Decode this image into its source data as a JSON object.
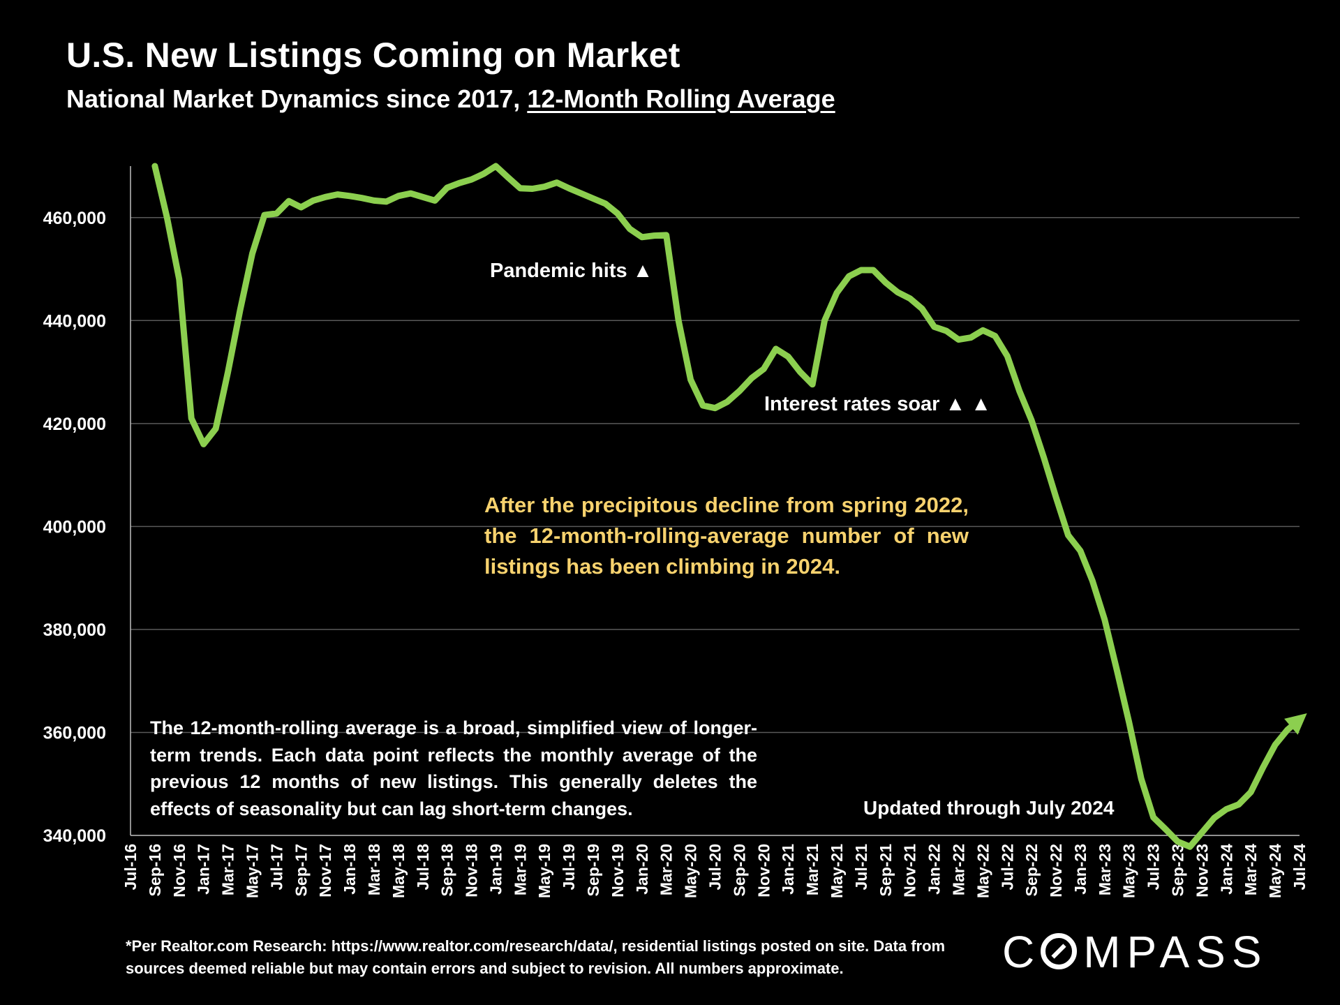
{
  "header": {
    "title": "U.S. New Listings Coming on Market",
    "subtitle_plain": "National Market Dynamics since 2017, ",
    "subtitle_underlined": "12-Month Rolling Average"
  },
  "annotations": {
    "pandemic": "Pandemic hits ▲",
    "rates": "Interest rates soar ▲ ▲",
    "callout": "After the precipitous decline from spring 2022, the 12-month-rolling-average number of new listings has been climbing in 2024.",
    "note": "The 12-month-rolling average is a broad, simplified view of longer-term trends. Each data point reflects the monthly average of the previous 12 months of new listings. This generally deletes the effects of seasonality but can lag short-term changes.",
    "updated": "Updated through July 2024"
  },
  "footer": {
    "footnote": "*Per Realtor.com Research:  https://www.realtor.com/research/data/, residential listings posted on site. Data from sources deemed reliable but may contain errors and subject to revision. All numbers approximate.",
    "logo_prefix": "C",
    "logo_suffix": "MPASS"
  },
  "colors": {
    "line": "#8ccf4f",
    "grid": "#595959",
    "background": "#000000",
    "callout": "#f7d26e"
  },
  "chart_data": {
    "type": "line",
    "title": "U.S. New Listings Coming on Market",
    "xlabel": "",
    "ylabel": "",
    "ylim": [
      340000,
      470000
    ],
    "yticks": [
      340000,
      360000,
      380000,
      400000,
      420000,
      440000,
      460000
    ],
    "ytick_labels": [
      "340,000",
      "360,000",
      "380,000",
      "400,000",
      "420,000",
      "440,000",
      "460,000"
    ],
    "grid": true,
    "xtick_labels": [
      "Jul-16",
      "Sep-16",
      "Nov-16",
      "Jan-17",
      "Mar-17",
      "May-17",
      "Jul-17",
      "Sep-17",
      "Nov-17",
      "Jan-18",
      "Mar-18",
      "May-18",
      "Jul-18",
      "Sep-18",
      "Nov-18",
      "Jan-19",
      "Mar-19",
      "May-19",
      "Jul-19",
      "Sep-19",
      "Nov-19",
      "Jan-20",
      "Mar-20",
      "May-20",
      "Jul-20",
      "Sep-20",
      "Nov-20",
      "Jan-21",
      "Mar-21",
      "May-21",
      "Jul-21",
      "Sep-21",
      "Nov-21",
      "Jan-22",
      "Mar-22",
      "May-22",
      "Jul-22",
      "Sep-22",
      "Nov-22",
      "Jan-23",
      "Mar-23",
      "May-23",
      "Jul-23",
      "Sep-23",
      "Nov-23",
      "Jan-24",
      "Mar-24",
      "May-24",
      "Jul-24"
    ],
    "x": [
      "Sep-16",
      "Oct-16",
      "Nov-16",
      "Dec-16",
      "Jan-17",
      "Feb-17",
      "Mar-17",
      "Apr-17",
      "May-17",
      "Jun-17",
      "Jul-17",
      "Aug-17",
      "Sep-17",
      "Oct-17",
      "Nov-17",
      "Dec-17",
      "Jan-18",
      "Feb-18",
      "Mar-18",
      "Apr-18",
      "May-18",
      "Jun-18",
      "Jul-18",
      "Aug-18",
      "Sep-18",
      "Oct-18",
      "Nov-18",
      "Dec-18",
      "Jan-19",
      "Feb-19",
      "Mar-19",
      "Apr-19",
      "May-19",
      "Jun-19",
      "Jul-19",
      "Aug-19",
      "Sep-19",
      "Oct-19",
      "Nov-19",
      "Dec-19",
      "Jan-20",
      "Feb-20",
      "Mar-20",
      "Apr-20",
      "May-20",
      "Jun-20",
      "Jul-20",
      "Aug-20",
      "Sep-20",
      "Oct-20",
      "Nov-20",
      "Dec-20",
      "Jan-21",
      "Feb-21",
      "Mar-21",
      "Apr-21",
      "May-21",
      "Jun-21",
      "Jul-21",
      "Aug-21",
      "Sep-21",
      "Oct-21",
      "Nov-21",
      "Dec-21",
      "Jan-22",
      "Feb-22",
      "Mar-22",
      "Apr-22",
      "May-22",
      "Jun-22",
      "Jul-22",
      "Aug-22",
      "Sep-22",
      "Oct-22",
      "Nov-22",
      "Dec-22",
      "Jan-23",
      "Feb-23",
      "Mar-23",
      "Apr-23",
      "May-23",
      "Jun-23",
      "Jul-23",
      "Aug-23",
      "Sep-23",
      "Oct-23",
      "Nov-23",
      "Dec-23",
      "Jan-24",
      "Feb-24",
      "Mar-24",
      "Apr-24",
      "May-24",
      "Jun-24",
      "Jul-24"
    ],
    "series": [
      {
        "values": [
          470000,
          460000,
          448000,
          421000,
          416000,
          419000,
          430000,
          442000,
          453000,
          460500,
          460800,
          463200,
          462000,
          463300,
          464000,
          464500,
          464200,
          463800,
          463300,
          463100,
          464200,
          464700,
          464000,
          463300,
          465800,
          466700,
          467400,
          468500,
          470000,
          467800,
          465700,
          465600,
          466000,
          466800,
          465700,
          464700,
          463700,
          462700,
          460800,
          457800,
          456200,
          456500,
          456600,
          440000,
          428500,
          423500,
          423000,
          424200,
          426300,
          428800,
          430600,
          434500,
          433000,
          430000,
          427600,
          440000,
          445400,
          448600,
          449800,
          449800,
          447400,
          445500,
          444300,
          442300,
          438800,
          438000,
          436300,
          436700,
          438100,
          437000,
          433100,
          426300,
          420600,
          413400,
          405700,
          398300,
          395300,
          389400,
          381900,
          372100,
          362000,
          351000,
          343500,
          341200,
          338800,
          337800,
          340600,
          343400,
          345100,
          346000,
          348400,
          353200,
          357600,
          360500,
          362500
        ]
      }
    ]
  }
}
